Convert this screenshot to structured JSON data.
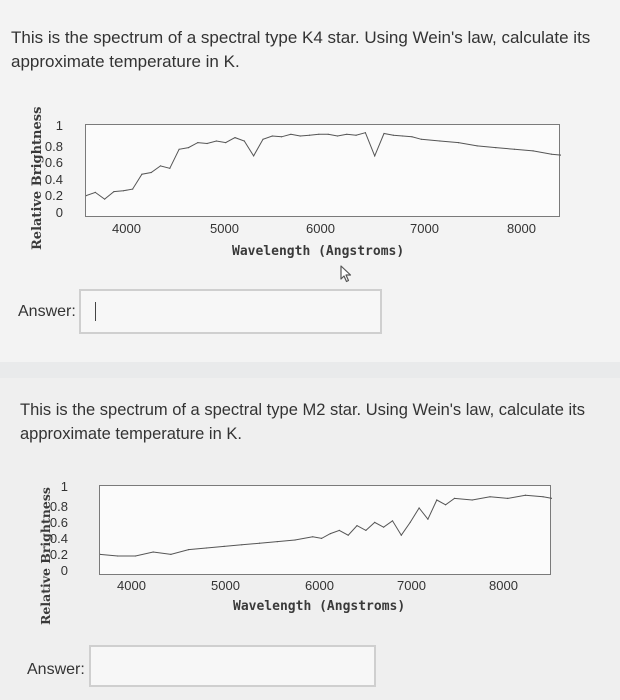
{
  "questions": [
    {
      "text": "This is the spectrum of a spectral type K4 star. Using Wein's law, calculate its approximate temperature in K.",
      "answer_label": "Answer:",
      "answer_value": ""
    },
    {
      "text": "This is the spectrum of a spectral type M2 star. Using Wein's law, calculate its approximate temperature in K.",
      "answer_label": "Answer:",
      "answer_value": ""
    }
  ],
  "chart_data": [
    {
      "type": "line",
      "title": "",
      "xlabel": "Wavelength (Angstroms)",
      "ylabel": "Relative Brightness",
      "xlim": [
        3400,
        8500
      ],
      "ylim": [
        0,
        1
      ],
      "x_ticks": [
        "4000",
        "5000",
        "6000",
        "7000",
        "8000"
      ],
      "y_ticks": [
        "1",
        "0.8",
        "0.6",
        "0.4",
        "0.2",
        "0"
      ],
      "grid": false,
      "series": [
        {
          "x": [
            3400,
            3500,
            3600,
            3700,
            3800,
            3900,
            4000,
            4100,
            4200,
            4300,
            4400,
            4500,
            4600,
            4700,
            4800,
            4900,
            5000,
            5100,
            5200,
            5300,
            5400,
            5500,
            5600,
            5700,
            5800,
            5900,
            6000,
            6100,
            6200,
            6300,
            6400,
            6500,
            6600,
            6700,
            6800,
            6900,
            7000,
            7200,
            7400,
            7600,
            7800,
            8000,
            8200,
            8400,
            8500
          ],
          "values": [
            0.22,
            0.26,
            0.18,
            0.27,
            0.28,
            0.3,
            0.48,
            0.5,
            0.58,
            0.55,
            0.78,
            0.8,
            0.86,
            0.85,
            0.88,
            0.86,
            0.92,
            0.88,
            0.7,
            0.9,
            0.94,
            0.93,
            0.96,
            0.94,
            0.95,
            0.96,
            0.96,
            0.94,
            0.96,
            0.95,
            0.98,
            0.7,
            0.97,
            0.95,
            0.94,
            0.93,
            0.9,
            0.88,
            0.86,
            0.82,
            0.8,
            0.78,
            0.76,
            0.72,
            0.71
          ]
        }
      ]
    },
    {
      "type": "line",
      "title": "",
      "xlabel": "Wavelength (Angstroms)",
      "ylabel": "Relative Brightness",
      "xlim": [
        3400,
        8500
      ],
      "ylim": [
        0,
        1
      ],
      "x_ticks": [
        "4000",
        "5000",
        "6000",
        "7000",
        "8000"
      ],
      "y_ticks": [
        "1",
        "0.8",
        "0.6",
        "0.4",
        "0.2",
        "0"
      ],
      "grid": false,
      "series": [
        {
          "x": [
            3400,
            3600,
            3800,
            4000,
            4200,
            4400,
            4600,
            4800,
            5000,
            5200,
            5400,
            5600,
            5800,
            5900,
            6000,
            6100,
            6200,
            6300,
            6400,
            6500,
            6600,
            6700,
            6800,
            6900,
            7000,
            7100,
            7200,
            7300,
            7400,
            7600,
            7800,
            8000,
            8200,
            8400,
            8500
          ],
          "values": [
            0.22,
            0.2,
            0.2,
            0.25,
            0.22,
            0.28,
            0.3,
            0.32,
            0.34,
            0.36,
            0.38,
            0.4,
            0.44,
            0.42,
            0.48,
            0.52,
            0.46,
            0.58,
            0.52,
            0.62,
            0.56,
            0.64,
            0.46,
            0.62,
            0.8,
            0.66,
            0.9,
            0.84,
            0.92,
            0.9,
            0.94,
            0.92,
            0.96,
            0.94,
            0.92
          ]
        }
      ]
    }
  ]
}
